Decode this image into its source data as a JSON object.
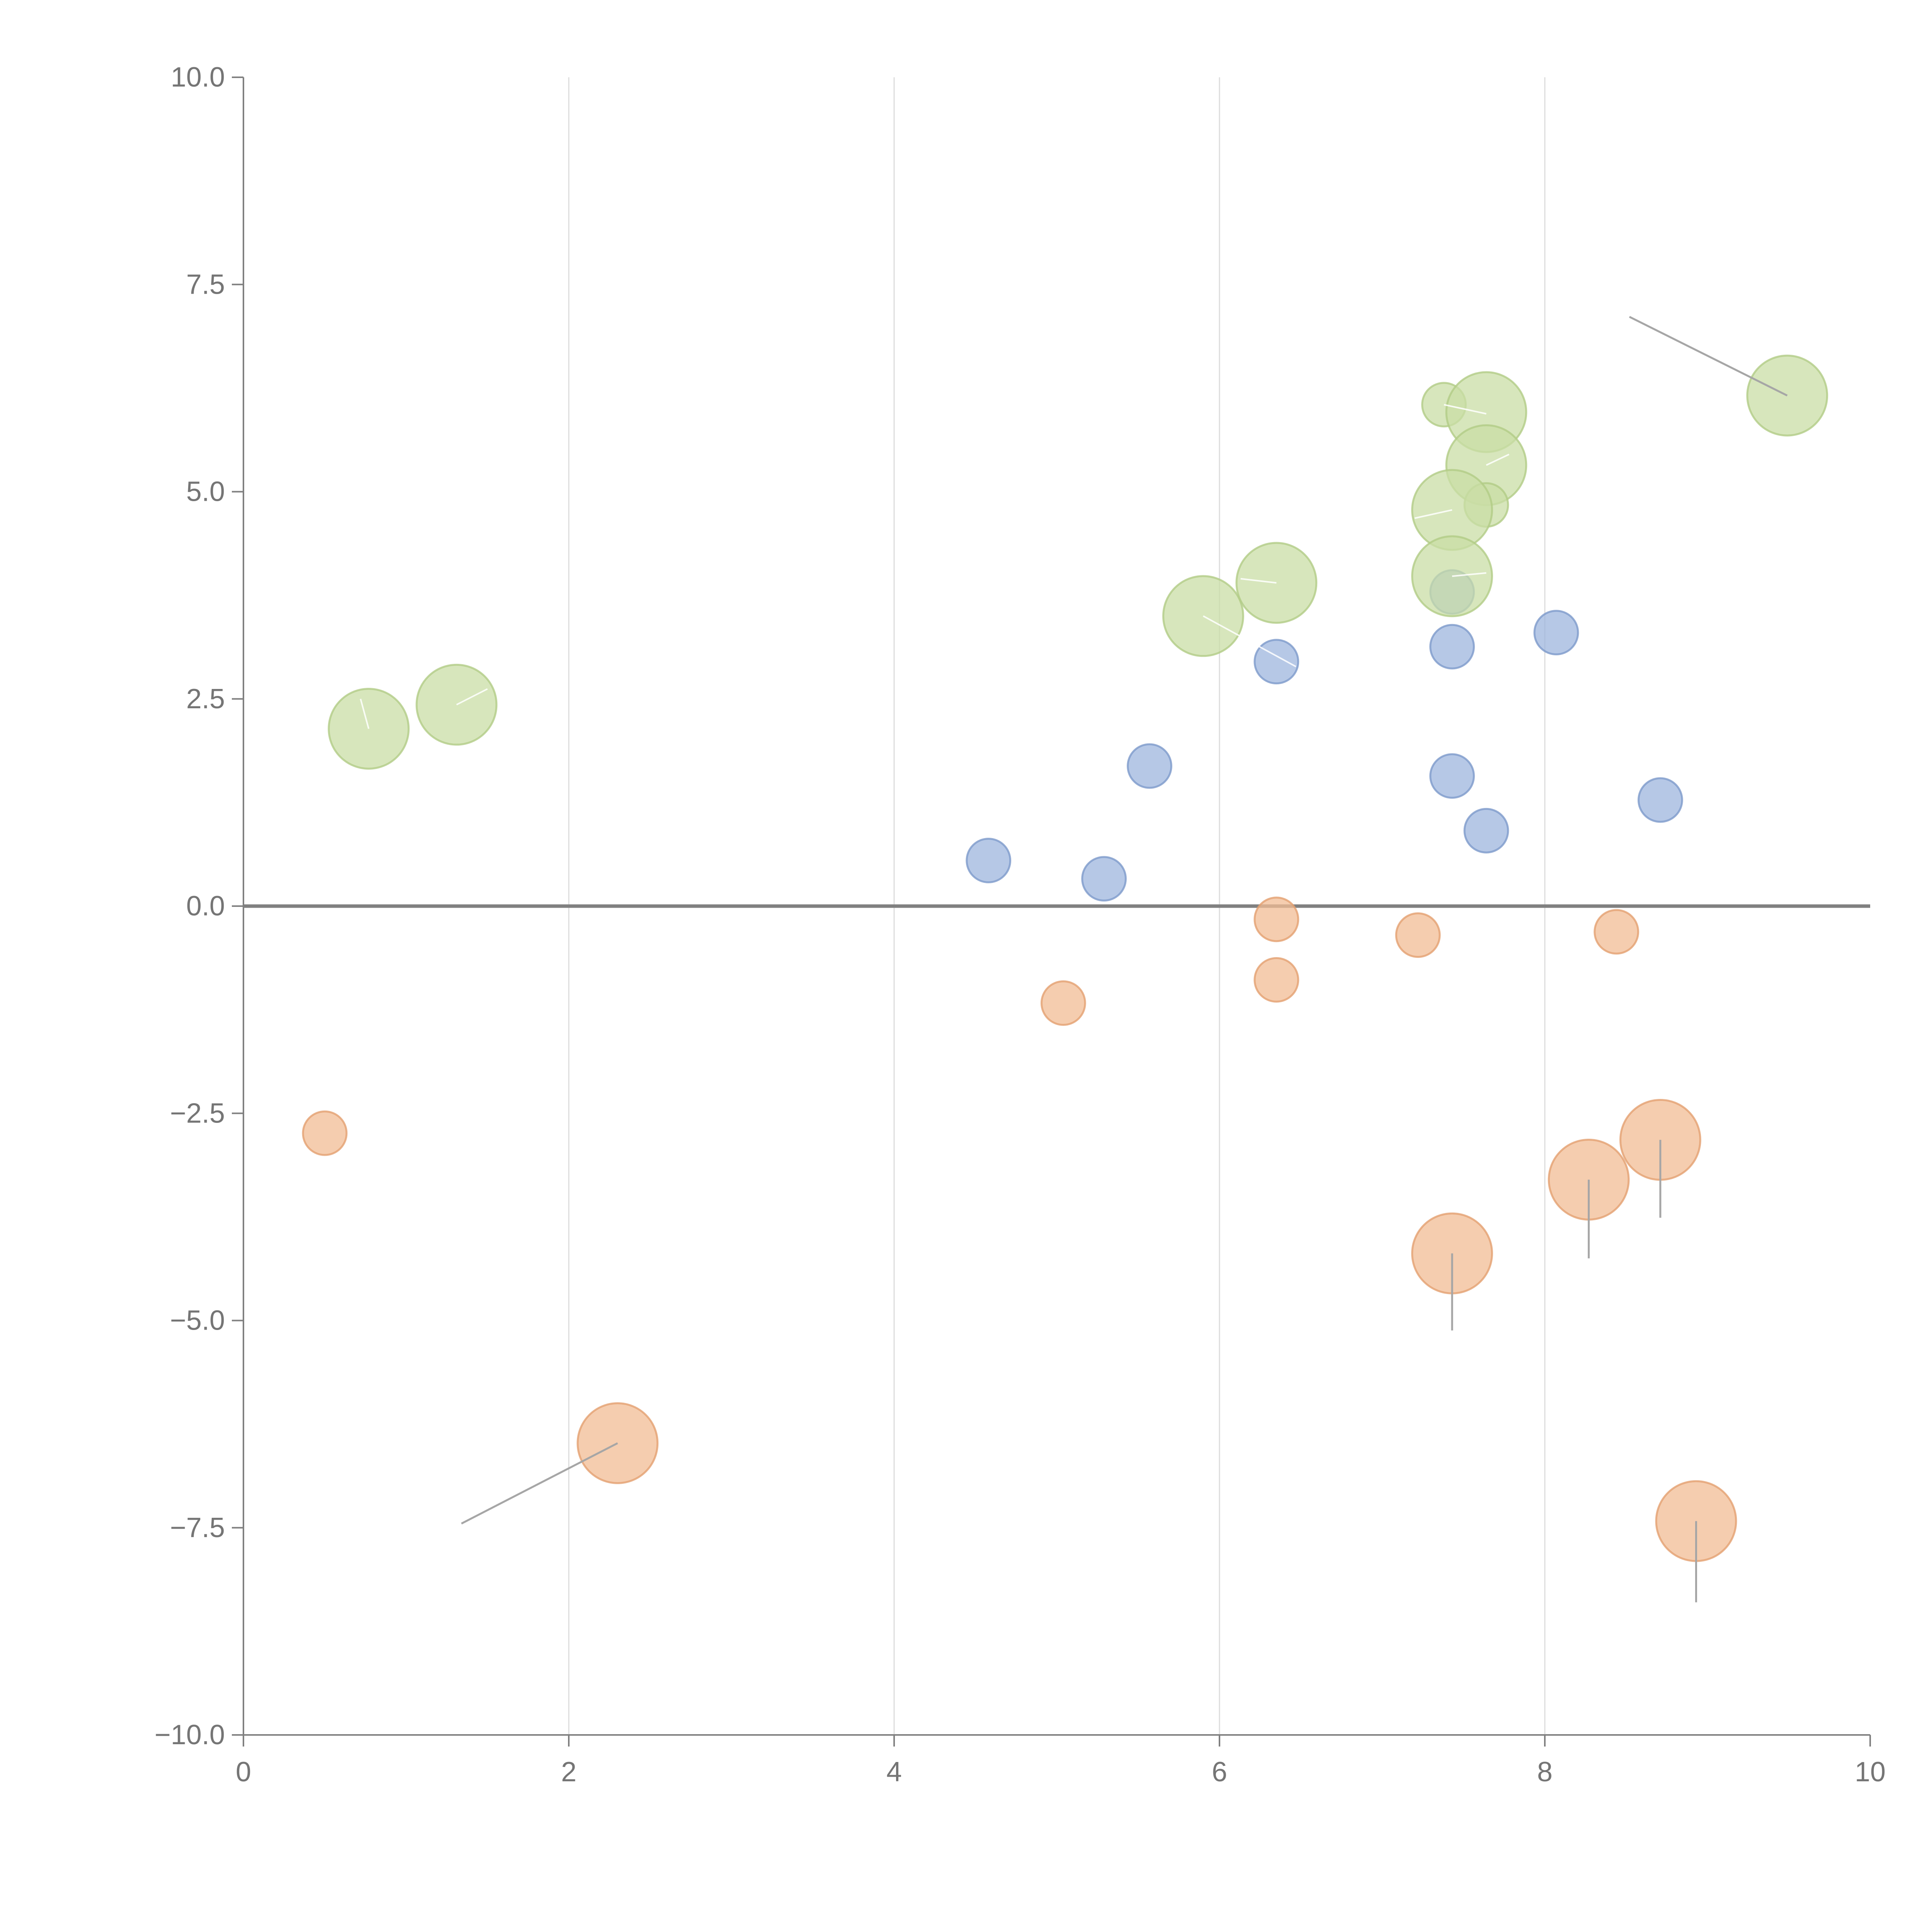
{
  "chart_data": {
    "type": "scatter",
    "title": "",
    "xlabel": "",
    "ylabel": "",
    "xlim": [
      0,
      10
    ],
    "ylim": [
      -10,
      10
    ],
    "x_ticks": [
      0,
      2,
      4,
      6,
      8,
      10
    ],
    "x_tick_labels": [
      "0",
      "2",
      "4",
      "6",
      "8",
      "10"
    ],
    "y_ticks": [
      10,
      7.5,
      5,
      2.5,
      0,
      -2.5,
      -5,
      -7.5,
      -10
    ],
    "y_tick_labels": [
      "10.0",
      "7.5",
      "5.0",
      "2.5",
      "0.0",
      "−2.5",
      "−5.0",
      "−7.5",
      "−10.0"
    ],
    "vertical_grid_x": [
      2,
      4,
      6,
      8
    ],
    "zero_line_y": 0,
    "colors": {
      "blue": "#9db5dd",
      "blue_stroke": "#7d9acb",
      "orange": "#f2bc94",
      "orange_stroke": "#e3a070",
      "green": "#c9dda6",
      "green_stroke": "#b1cc86",
      "connector_light": "#ffffff",
      "connector_dark": "#a6a6a6"
    },
    "size_scale": {
      "small": 0.12,
      "large": 0.22
    },
    "series": [
      {
        "name": "blue",
        "color": "#9db5dd",
        "points": [
          {
            "x": 4.58,
            "y": 0.55,
            "size": "small"
          },
          {
            "x": 5.29,
            "y": 0.33,
            "size": "small"
          },
          {
            "x": 5.57,
            "y": 1.69,
            "size": "small"
          },
          {
            "x": 6.35,
            "y": 2.95,
            "size": "small"
          },
          {
            "x": 7.43,
            "y": 3.79,
            "size": "small"
          },
          {
            "x": 7.43,
            "y": 3.13,
            "size": "small"
          },
          {
            "x": 7.43,
            "y": 1.57,
            "size": "small"
          },
          {
            "x": 7.64,
            "y": 0.91,
            "size": "small"
          },
          {
            "x": 8.07,
            "y": 3.3,
            "size": "small"
          },
          {
            "x": 8.71,
            "y": 1.28,
            "size": "small"
          }
        ]
      },
      {
        "name": "orange",
        "color": "#f2bc94",
        "points": [
          {
            "x": 0.5,
            "y": -2.74,
            "size": "small"
          },
          {
            "x": 5.04,
            "y": -1.17,
            "size": "small"
          },
          {
            "x": 6.35,
            "y": -0.16,
            "size": "small"
          },
          {
            "x": 6.35,
            "y": -0.89,
            "size": "small"
          },
          {
            "x": 7.22,
            "y": -0.35,
            "size": "small"
          },
          {
            "x": 8.44,
            "y": -0.31,
            "size": "small"
          },
          {
            "x": 2.3,
            "y": -6.48,
            "size": "large",
            "connector": {
              "x": 1.34,
              "y": -7.45,
              "tone": "dark"
            }
          },
          {
            "x": 7.43,
            "y": -4.19,
            "size": "large",
            "connector": {
              "x": 7.43,
              "y": -5.12,
              "tone": "dark"
            }
          },
          {
            "x": 8.27,
            "y": -3.3,
            "size": "large",
            "connector": {
              "x": 8.27,
              "y": -4.25,
              "tone": "dark"
            }
          },
          {
            "x": 8.71,
            "y": -2.82,
            "size": "large",
            "connector": {
              "x": 8.71,
              "y": -3.76,
              "tone": "dark"
            }
          },
          {
            "x": 8.93,
            "y": -7.42,
            "size": "large",
            "connector": {
              "x": 8.93,
              "y": -8.4,
              "tone": "dark"
            }
          }
        ]
      },
      {
        "name": "green",
        "color": "#c9dda6",
        "points": [
          {
            "x": 0.77,
            "y": 2.14,
            "size": "large",
            "connector": {
              "x": 0.72,
              "y": 2.5,
              "tone": "light"
            }
          },
          {
            "x": 1.31,
            "y": 2.43,
            "size": "large",
            "connector": {
              "x": 1.5,
              "y": 2.62,
              "tone": "light"
            }
          },
          {
            "x": 5.9,
            "y": 3.5,
            "size": "large",
            "connector": {
              "x": 6.47,
              "y": 2.89,
              "tone": "light"
            }
          },
          {
            "x": 6.35,
            "y": 3.9,
            "size": "large",
            "connector": {
              "x": 6.13,
              "y": 3.95,
              "tone": "light"
            }
          },
          {
            "x": 7.38,
            "y": 6.05,
            "size": "small",
            "connector": {
              "x": 7.64,
              "y": 5.94,
              "tone": "light"
            }
          },
          {
            "x": 7.64,
            "y": 5.96,
            "size": "large"
          },
          {
            "x": 7.64,
            "y": 5.32,
            "size": "large",
            "connector": {
              "x": 7.78,
              "y": 5.45,
              "tone": "light"
            }
          },
          {
            "x": 7.64,
            "y": 4.84,
            "size": "small"
          },
          {
            "x": 7.43,
            "y": 4.78,
            "size": "large",
            "connector": {
              "x": 7.2,
              "y": 4.68,
              "tone": "light"
            }
          },
          {
            "x": 7.43,
            "y": 3.98,
            "size": "large",
            "connector": {
              "x": 7.64,
              "y": 4.02,
              "tone": "light"
            }
          },
          {
            "x": 9.49,
            "y": 6.16,
            "size": "large",
            "connector": {
              "x": 8.52,
              "y": 7.11,
              "tone": "dark"
            }
          }
        ]
      }
    ]
  }
}
